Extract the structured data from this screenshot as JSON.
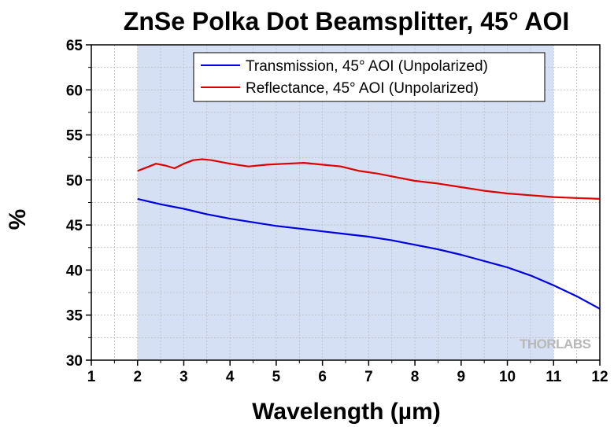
{
  "chart_data": {
    "type": "line",
    "title": "ZnSe Polka Dot Beamsplitter, 45° AOI",
    "xlabel": "Wavelength (µm)",
    "ylabel": "%",
    "xlim": [
      1,
      12
    ],
    "ylim": [
      30,
      65
    ],
    "xticks": [
      1,
      2,
      3,
      4,
      5,
      6,
      7,
      8,
      9,
      10,
      11,
      12
    ],
    "yticks": [
      30,
      35,
      40,
      45,
      50,
      55,
      60,
      65
    ],
    "grid": true,
    "legend_position": "top-center",
    "shaded_region": {
      "x": [
        2,
        11
      ],
      "color": "#d6e0f5"
    },
    "series": [
      {
        "name": "Transmission, 45° AOI (Unpolarized)",
        "color": "#0000dd",
        "x": [
          2,
          2.5,
          3,
          3.5,
          4,
          4.5,
          5,
          5.5,
          6,
          6.5,
          7,
          7.5,
          8,
          8.5,
          9,
          9.5,
          10,
          10.5,
          11,
          11.5,
          12
        ],
        "y": [
          47.9,
          47.3,
          46.8,
          46.2,
          45.7,
          45.3,
          44.9,
          44.6,
          44.3,
          44.0,
          43.7,
          43.3,
          42.8,
          42.3,
          41.7,
          41.0,
          40.3,
          39.4,
          38.3,
          37.1,
          35.7
        ]
      },
      {
        "name": "Reflectance, 45° AOI (Unpolarized)",
        "color": "#dd0000",
        "x": [
          2,
          2.2,
          2.4,
          2.6,
          2.8,
          3.0,
          3.2,
          3.4,
          3.6,
          3.8,
          4.0,
          4.4,
          4.8,
          5.2,
          5.6,
          6.0,
          6.4,
          6.8,
          7.2,
          7.6,
          8.0,
          8.5,
          9.0,
          9.5,
          10.0,
          10.5,
          11.0,
          11.5,
          12.0
        ],
        "y": [
          51.0,
          51.4,
          51.8,
          51.6,
          51.3,
          51.8,
          52.2,
          52.3,
          52.2,
          52.0,
          51.8,
          51.5,
          51.7,
          51.8,
          51.9,
          51.7,
          51.5,
          51.0,
          50.7,
          50.3,
          49.9,
          49.6,
          49.2,
          48.8,
          48.5,
          48.3,
          48.1,
          48.0,
          47.9
        ]
      }
    ],
    "watermark": "THORLABS"
  }
}
